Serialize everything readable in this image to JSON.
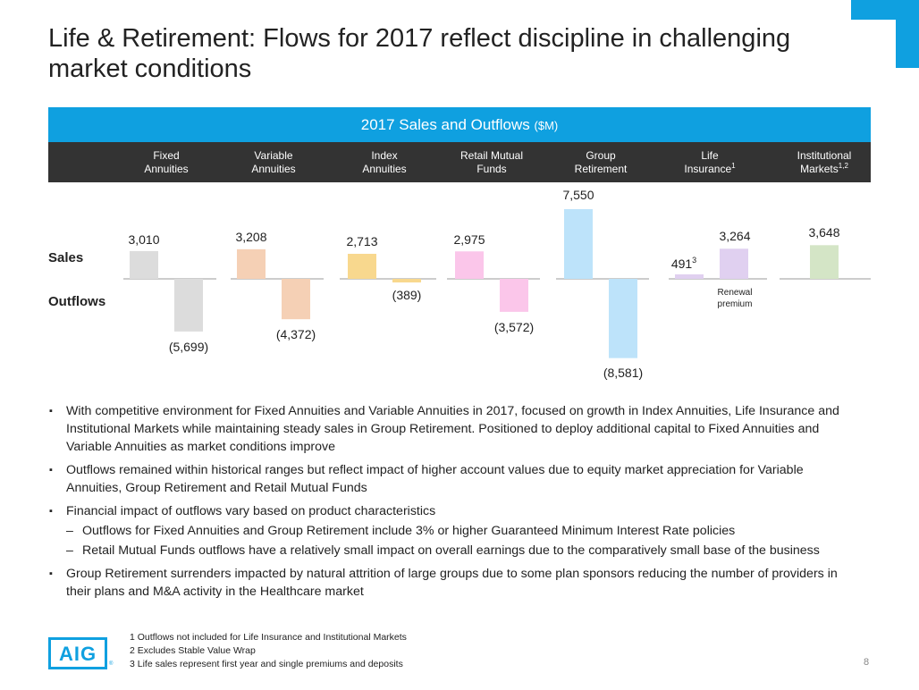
{
  "title": "Life & Retirement: Flows for 2017 reflect discipline in challenging market conditions",
  "band": {
    "label": "2017 Sales and Outflows",
    "unit": "($M)"
  },
  "columns": [
    {
      "line1": "Fixed",
      "line2": "Annuities",
      "sup": ""
    },
    {
      "line1": "Variable",
      "line2": "Annuities",
      "sup": ""
    },
    {
      "line1": "Index",
      "line2": "Annuities",
      "sup": ""
    },
    {
      "line1": "Retail Mutual",
      "line2": "Funds",
      "sup": ""
    },
    {
      "line1": "Group",
      "line2": "Retirement",
      "sup": ""
    },
    {
      "line1": "Life",
      "line2": "Insurance",
      "sup": "1"
    },
    {
      "line1": "Institutional",
      "line2": "Markets",
      "sup": "1,2"
    }
  ],
  "row_labels": {
    "sales": "Sales",
    "outflows": "Outflows"
  },
  "chart_data": {
    "type": "bar",
    "title": "2017 Sales and Outflows ($M)",
    "categories": [
      "Fixed Annuities",
      "Variable Annuities",
      "Index Annuities",
      "Retail Mutual Funds",
      "Group Retirement",
      "Life Insurance",
      "Institutional Markets"
    ],
    "series": [
      {
        "name": "Sales",
        "values": [
          3010,
          3208,
          2713,
          2975,
          7550,
          491,
          3648
        ]
      },
      {
        "name": "Outflows",
        "values": [
          -5699,
          -4372,
          -389,
          -3572,
          -8581,
          null,
          null
        ]
      },
      {
        "name": "Renewal premium",
        "values": [
          null,
          null,
          null,
          null,
          null,
          3264,
          null
        ]
      }
    ],
    "sales_labels": [
      "3,010",
      "3,208",
      "2,713",
      "2,975",
      "7,550",
      "491",
      "3,648"
    ],
    "outflow_labels": [
      "(5,699)",
      "(4,372)",
      "(389)",
      "(3,572)",
      "(8,581)",
      "",
      ""
    ],
    "renewal_label": "3,264",
    "life_sales_sup": "3",
    "renewal_caption": [
      "Renewal",
      "premium"
    ],
    "colors": [
      "#dcdcdc",
      "#f5d0b5",
      "#f8d88e",
      "#fbc6ea",
      "#bde3fa",
      "#e0d0f0",
      "#d4e5c6"
    ]
  },
  "bullets": [
    {
      "text": "With competitive environment for Fixed Annuities and Variable Annuities in 2017, focused on growth in Index Annuities, Life Insurance and Institutional Markets while maintaining steady sales in Group Retirement. Positioned to deploy additional capital to Fixed Annuities and Variable Annuities as market conditions improve",
      "subs": []
    },
    {
      "text": "Outflows remained within historical ranges but reflect impact of higher account values due to equity market appreciation for Variable Annuities, Group Retirement and Retail Mutual Funds",
      "subs": []
    },
    {
      "text": "Financial impact of outflows vary based on product characteristics",
      "subs": [
        "Outflows for Fixed Annuities and Group Retirement include 3% or higher Guaranteed Minimum Interest Rate policies",
        "Retail Mutual Funds outflows have a relatively small impact on overall earnings due to the comparatively small base of the business"
      ]
    },
    {
      "text": "Group Retirement surrenders impacted by natural attrition of large groups due to some plan sponsors reducing the number of providers in their plans and M&A activity in the Healthcare market",
      "subs": []
    }
  ],
  "bullet_marker": "▪",
  "sub_marker": "–",
  "footnotes": [
    "1  Outflows not included for Life Insurance and Institutional Markets",
    "2  Excludes Stable Value Wrap",
    "3  Life sales represent first year and single premiums and deposits"
  ],
  "logo_text": "AIG",
  "logo_tm": "®",
  "page_number": "8"
}
